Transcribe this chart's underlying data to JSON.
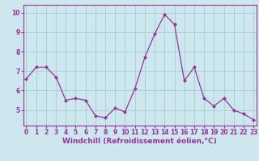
{
  "x": [
    0,
    1,
    2,
    3,
    4,
    5,
    6,
    7,
    8,
    9,
    10,
    11,
    12,
    13,
    14,
    15,
    16,
    17,
    18,
    19,
    20,
    21,
    22,
    23
  ],
  "y": [
    6.6,
    7.2,
    7.2,
    6.7,
    5.5,
    5.6,
    5.5,
    4.7,
    4.6,
    5.1,
    4.9,
    6.1,
    7.7,
    8.9,
    9.9,
    9.4,
    6.5,
    7.2,
    5.6,
    5.2,
    5.6,
    5.0,
    4.8,
    4.5
  ],
  "line_color": "#993399",
  "marker": "D",
  "marker_size": 2,
  "bg_color": "#cce8ee",
  "grid_color": "#aacccc",
  "xlabel": "Windchill (Refroidissement éolien,°C)",
  "ylim": [
    4.2,
    10.4
  ],
  "yticks": [
    5,
    6,
    7,
    8,
    9,
    10
  ],
  "xticks": [
    0,
    1,
    2,
    3,
    4,
    5,
    6,
    7,
    8,
    9,
    10,
    11,
    12,
    13,
    14,
    15,
    16,
    17,
    18,
    19,
    20,
    21,
    22,
    23
  ],
  "tick_color": "#993399",
  "tick_fontsize": 5.5,
  "xlabel_fontsize": 6.5,
  "spine_color": "#993399",
  "xlim_left": -0.3,
  "xlim_right": 23.3
}
